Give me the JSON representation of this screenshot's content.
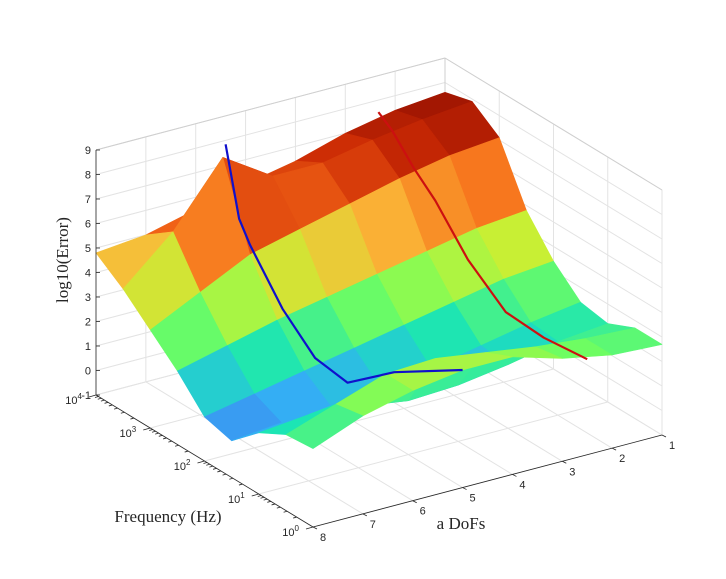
{
  "chart_data": {
    "type": "surface",
    "xlabel": "a DoFs",
    "ylabel": "Frequency (Hz)",
    "zlabel": "log10(Error)",
    "x_ticks": [
      "1",
      "2",
      "3",
      "4",
      "5",
      "6",
      "7",
      "8"
    ],
    "y_ticks": [
      {
        "base": "10",
        "exp": "0"
      },
      {
        "base": "10",
        "exp": "1"
      },
      {
        "base": "10",
        "exp": "2"
      },
      {
        "base": "10",
        "exp": "3"
      },
      {
        "base": "10",
        "exp": "4"
      }
    ],
    "z_ticks": [
      "-1",
      "0",
      "1",
      "2",
      "3",
      "4",
      "5",
      "6",
      "7",
      "8",
      "9"
    ],
    "xlim": [
      1,
      8
    ],
    "ylim_log10": [
      0,
      4
    ],
    "zlim": [
      -1,
      9
    ],
    "y_scale": "log",
    "grid": true,
    "colormap": "turbo",
    "surface_profiles": [
      {
        "x": 8,
        "log10_freq": [
          0,
          0.5,
          1,
          1.5,
          2,
          2.5,
          3,
          3.5,
          4
        ],
        "log10_error": [
          2.2,
          2.1,
          1.5,
          0.5,
          0.8,
          2.0,
          3.0,
          4.0,
          4.8
        ]
      },
      {
        "x": 7,
        "log10_freq": [
          0,
          0.5,
          1,
          1.5,
          2,
          2.5,
          3,
          3.5,
          4
        ],
        "log10_error": [
          3.0,
          2.8,
          1.7,
          0.7,
          1.2,
          2.5,
          4.0,
          5.8,
          5.0
        ]
      },
      {
        "x": 6,
        "log10_freq": [
          0,
          0.5,
          1,
          1.5,
          2,
          2.5,
          3,
          3.5,
          4
        ],
        "log10_error": [
          3.5,
          3.5,
          1.5,
          0.8,
          1.6,
          3.0,
          5.0,
          8.3,
          5.5
        ]
      },
      {
        "x": 5,
        "log10_freq": [
          0,
          0.5,
          1,
          1.5,
          2,
          2.5,
          3,
          3.5,
          4
        ],
        "log10_error": [
          3.8,
          3.6,
          1.2,
          1.0,
          2.0,
          3.4,
          5.5,
          7.0,
          6.0
        ]
      },
      {
        "x": 4,
        "log10_freq": [
          0,
          0.5,
          1,
          1.5,
          2,
          2.5,
          3,
          3.5,
          4
        ],
        "log10_error": [
          3.8,
          3.3,
          1.3,
          1.3,
          2.4,
          3.8,
          6.0,
          7.0,
          6.4
        ]
      },
      {
        "x": 3,
        "log10_freq": [
          0,
          0.5,
          1,
          1.5,
          2,
          2.5,
          3,
          3.5,
          4
        ],
        "log10_error": [
          3.2,
          3.0,
          1.6,
          1.7,
          2.8,
          4.2,
          6.5,
          7.4,
          7.0
        ]
      },
      {
        "x": 2,
        "log10_freq": [
          0,
          0.5,
          1,
          1.5,
          2,
          2.5,
          3,
          3.5,
          4
        ],
        "log10_error": [
          2.8,
          2.8,
          2.0,
          2.1,
          3.2,
          4.6,
          6.9,
          7.7,
          7.4
        ]
      },
      {
        "x": 1,
        "log10_freq": [
          0,
          0.5,
          1,
          1.5,
          2,
          2.5,
          3,
          3.5,
          4
        ],
        "log10_error": [
          2.7,
          2.7,
          2.2,
          2.4,
          3.4,
          4.8,
          7.1,
          7.9,
          7.6
        ]
      }
    ],
    "series": [
      {
        "color": "#1010cc",
        "points": [
          [
            5,
            0,
            3.8
          ],
          [
            5.5,
            0.8,
            2.9
          ],
          [
            6,
            1.2,
            2.2
          ],
          [
            6,
            1.8,
            2.4
          ],
          [
            6,
            2.4,
            3.6
          ],
          [
            6,
            3.0,
            5.4
          ],
          [
            6,
            3.2,
            6.2
          ],
          [
            6,
            3.45,
            8.9
          ]
        ]
      },
      {
        "color": "#cc1010",
        "points": [
          [
            2.5,
            0,
            2.9
          ],
          [
            2.5,
            0.8,
            2.7
          ],
          [
            2.5,
            1.5,
            2.8
          ],
          [
            2.5,
            2.2,
            4.0
          ],
          [
            2.5,
            2.8,
            5.6
          ],
          [
            2.5,
            3.2,
            6.4
          ],
          [
            2.5,
            3.6,
            7.4
          ],
          [
            2.5,
            3.85,
            7.8
          ]
        ]
      }
    ]
  }
}
